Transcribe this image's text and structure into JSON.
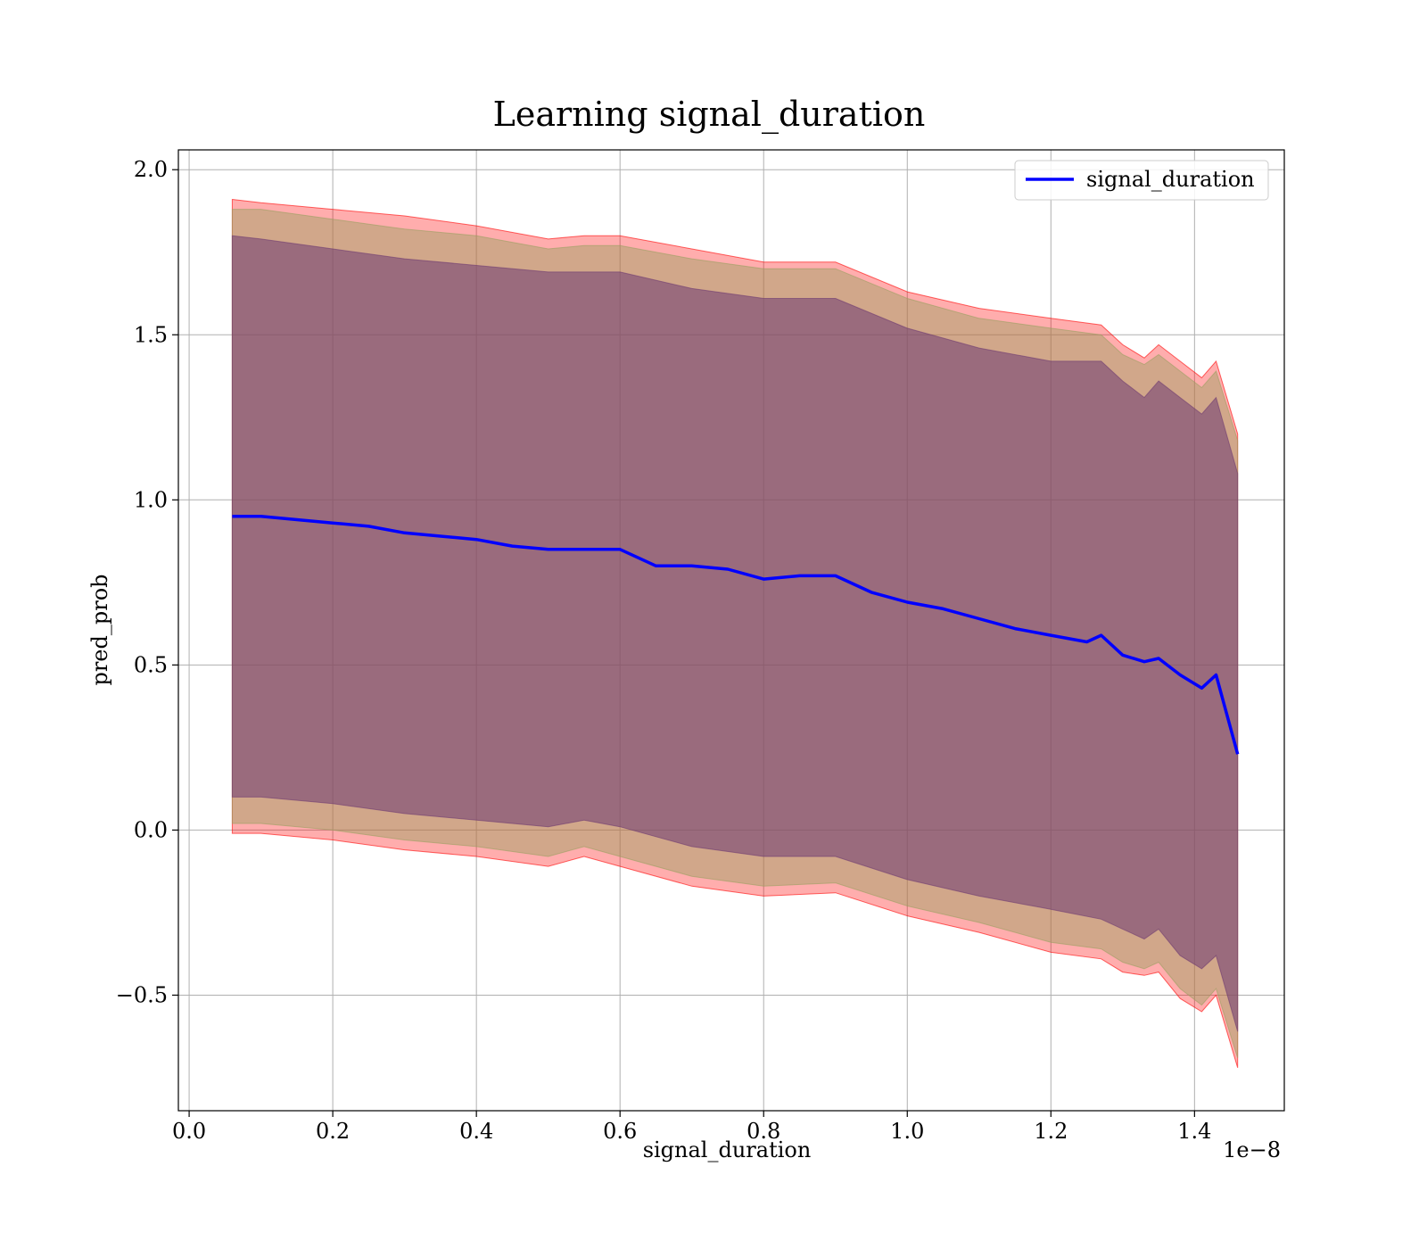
{
  "chart_data": {
    "type": "line",
    "title": "Learning signal_duration",
    "xlabel": "signal_duration",
    "ylabel": "pred_prob",
    "x_offset_label": "1e−8",
    "xlim": [
      -0.015,
      1.525
    ],
    "ylim": [
      -0.85,
      2.06
    ],
    "x_ticks": [
      0.0,
      0.2,
      0.4,
      0.6,
      0.8,
      1.0,
      1.2,
      1.4
    ],
    "x_tick_labels": [
      "0.0",
      "0.2",
      "0.4",
      "0.6",
      "0.8",
      "1.0",
      "1.2",
      "1.4"
    ],
    "y_ticks": [
      -0.5,
      0.0,
      0.5,
      1.0,
      1.5,
      2.0
    ],
    "y_tick_labels": [
      "−0.5",
      "0.0",
      "0.5",
      "1.0",
      "1.5",
      "2.0"
    ],
    "grid": true,
    "legend_position": "upper right",
    "series": [
      {
        "name": "signal_duration",
        "color": "#0000ff",
        "x": [
          0.06,
          0.1,
          0.15,
          0.2,
          0.25,
          0.3,
          0.35,
          0.4,
          0.45,
          0.5,
          0.55,
          0.6,
          0.65,
          0.7,
          0.75,
          0.8,
          0.85,
          0.9,
          0.95,
          1.0,
          1.05,
          1.1,
          1.15,
          1.2,
          1.25,
          1.27,
          1.3,
          1.33,
          1.35,
          1.38,
          1.41,
          1.43,
          1.46
        ],
        "y": [
          0.95,
          0.95,
          0.94,
          0.93,
          0.92,
          0.9,
          0.89,
          0.88,
          0.86,
          0.85,
          0.85,
          0.85,
          0.8,
          0.8,
          0.79,
          0.76,
          0.77,
          0.77,
          0.72,
          0.69,
          0.67,
          0.64,
          0.61,
          0.59,
          0.57,
          0.59,
          0.53,
          0.51,
          0.52,
          0.47,
          0.43,
          0.47,
          0.23
        ]
      }
    ],
    "bands": [
      {
        "kind": "outer",
        "fill": "#ff0000",
        "opacity": 0.32,
        "x": [
          0.06,
          0.1,
          0.2,
          0.3,
          0.4,
          0.5,
          0.55,
          0.6,
          0.7,
          0.8,
          0.9,
          1.0,
          1.1,
          1.2,
          1.27,
          1.3,
          1.33,
          1.35,
          1.38,
          1.41,
          1.43,
          1.46
        ],
        "upper": [
          1.91,
          1.9,
          1.88,
          1.86,
          1.83,
          1.79,
          1.8,
          1.8,
          1.76,
          1.72,
          1.72,
          1.63,
          1.58,
          1.55,
          1.53,
          1.47,
          1.43,
          1.47,
          1.42,
          1.37,
          1.42,
          1.2
        ],
        "lower": [
          -0.01,
          -0.01,
          -0.03,
          -0.06,
          -0.08,
          -0.11,
          -0.08,
          -0.11,
          -0.17,
          -0.2,
          -0.19,
          -0.26,
          -0.31,
          -0.37,
          -0.39,
          -0.43,
          -0.44,
          -0.43,
          -0.51,
          -0.55,
          -0.5,
          -0.72
        ]
      },
      {
        "kind": "middle",
        "fill": "#9aa060",
        "opacity": 0.45,
        "x": [
          0.06,
          0.1,
          0.2,
          0.3,
          0.4,
          0.5,
          0.55,
          0.6,
          0.7,
          0.8,
          0.9,
          1.0,
          1.1,
          1.2,
          1.27,
          1.3,
          1.33,
          1.35,
          1.38,
          1.41,
          1.43,
          1.46
        ],
        "upper": [
          1.88,
          1.88,
          1.85,
          1.82,
          1.8,
          1.76,
          1.77,
          1.77,
          1.73,
          1.7,
          1.7,
          1.61,
          1.55,
          1.52,
          1.5,
          1.44,
          1.41,
          1.44,
          1.39,
          1.34,
          1.39,
          1.18
        ],
        "lower": [
          0.02,
          0.02,
          0.0,
          -0.03,
          -0.05,
          -0.08,
          -0.05,
          -0.08,
          -0.14,
          -0.17,
          -0.16,
          -0.23,
          -0.28,
          -0.34,
          -0.36,
          -0.4,
          -0.42,
          -0.4,
          -0.48,
          -0.53,
          -0.48,
          -0.69
        ]
      },
      {
        "kind": "inner",
        "fill": "#6e3a72",
        "opacity": 0.55,
        "x": [
          0.06,
          0.1,
          0.2,
          0.3,
          0.4,
          0.5,
          0.55,
          0.6,
          0.7,
          0.8,
          0.9,
          1.0,
          1.1,
          1.2,
          1.27,
          1.3,
          1.33,
          1.35,
          1.38,
          1.41,
          1.43,
          1.46
        ],
        "upper": [
          1.8,
          1.79,
          1.76,
          1.73,
          1.71,
          1.69,
          1.69,
          1.69,
          1.64,
          1.61,
          1.61,
          1.52,
          1.46,
          1.42,
          1.42,
          1.36,
          1.31,
          1.36,
          1.31,
          1.26,
          1.31,
          1.08
        ],
        "lower": [
          0.1,
          0.1,
          0.08,
          0.05,
          0.03,
          0.01,
          0.03,
          0.01,
          -0.05,
          -0.08,
          -0.08,
          -0.15,
          -0.2,
          -0.24,
          -0.27,
          -0.3,
          -0.33,
          -0.3,
          -0.38,
          -0.42,
          -0.38,
          -0.61
        ]
      }
    ]
  }
}
